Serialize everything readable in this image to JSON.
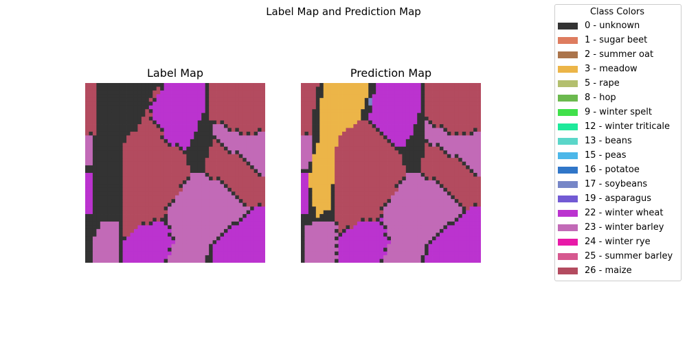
{
  "chart_data": {
    "type": "heatmap",
    "title": "Label Map and Prediction Map",
    "grid": false,
    "legend_placement": "right",
    "legend": {
      "title": "Class Colors",
      "entries": [
        {
          "id": 0,
          "label": "0 - unknown",
          "color": "#333333"
        },
        {
          "id": 1,
          "label": "1 - sugar beet",
          "color": "#de7c5f"
        },
        {
          "id": 2,
          "label": "2 - summer oat",
          "color": "#ab744b"
        },
        {
          "id": 3,
          "label": "3 - meadow",
          "color": "#ecb548"
        },
        {
          "id": 5,
          "label": "5 - rape",
          "color": "#b3bf6e"
        },
        {
          "id": 8,
          "label": "8 - hop",
          "color": "#6bb94e"
        },
        {
          "id": 9,
          "label": "9 - winter spelt",
          "color": "#40e04a"
        },
        {
          "id": 12,
          "label": "12 - winter triticale",
          "color": "#1ee99a"
        },
        {
          "id": 13,
          "label": "13 - beans",
          "color": "#5bd6c9"
        },
        {
          "id": 15,
          "label": "15 - peas",
          "color": "#4cb7e9"
        },
        {
          "id": 16,
          "label": "16 - potatoe",
          "color": "#3076c8"
        },
        {
          "id": 17,
          "label": "17 - soybeans",
          "color": "#7686c7"
        },
        {
          "id": 19,
          "label": "19 - asparagus",
          "color": "#725ad4"
        },
        {
          "id": 22,
          "label": "22 - winter wheat",
          "color": "#bb33cf"
        },
        {
          "id": 23,
          "label": "23 - winter barley",
          "color": "#c26ab7"
        },
        {
          "id": 24,
          "label": "24 - winter rye",
          "color": "#e81aa8"
        },
        {
          "id": 25,
          "label": "25 - summer barley",
          "color": "#d6588f"
        },
        {
          "id": 26,
          "label": "26 - maize",
          "color": "#b34b5f"
        }
      ]
    },
    "maps": [
      {
        "title": "Label Map",
        "size": 48,
        "regions": [
          {
            "class": 26,
            "points": [
              [
                0,
                0
              ],
              [
                0.5,
                0
              ],
              [
                0.5,
                0.22
              ],
              [
                0.4,
                0.4
              ],
              [
                0.2,
                0.35
              ],
              [
                0,
                0.32
              ]
            ]
          },
          {
            "class": 0,
            "points": [
              [
                0.07,
                0
              ],
              [
                0.4,
                0
              ],
              [
                0.35,
                0.13
              ],
              [
                0.24,
                0.34
              ],
              [
                0.2,
                0.6
              ],
              [
                0.18,
                1
              ],
              [
                0,
                1
              ],
              [
                0,
                0.7
              ],
              [
                0.03,
                0.7
              ],
              [
                0.03,
                0.45
              ],
              [
                0.05,
                0.3
              ],
              [
                0.07,
                0.2
              ]
            ]
          },
          {
            "class": 23,
            "points": [
              [
                0,
                0.28
              ],
              [
                0.04,
                0.3
              ],
              [
                0.04,
                0.45
              ],
              [
                0,
                0.47
              ]
            ]
          },
          {
            "class": 22,
            "points": [
              [
                0,
                0.5
              ],
              [
                0.04,
                0.5
              ],
              [
                0.04,
                0.73
              ],
              [
                0,
                0.73
              ]
            ]
          },
          {
            "class": 0,
            "points": [
              [
                0.4,
                0
              ],
              [
                0.62,
                0
              ],
              [
                0.68,
                0.08
              ],
              [
                0.68,
                0.25
              ],
              [
                0.62,
                0.3
              ],
              [
                0.5,
                0.24
              ]
            ]
          },
          {
            "class": 22,
            "points": [
              [
                0.45,
                0
              ],
              [
                0.68,
                0
              ],
              [
                0.66,
                0.15
              ],
              [
                0.58,
                0.35
              ],
              [
                0.5,
                0.4
              ],
              [
                0.44,
                0.3
              ],
              [
                0.35,
                0.15
              ]
            ]
          },
          {
            "class": 0,
            "points": [
              [
                0.6,
                0.3
              ],
              [
                0.68,
                0.27
              ],
              [
                0.7,
                0.36
              ],
              [
                0.62,
                0.37
              ]
            ]
          },
          {
            "class": 26,
            "points": [
              [
                0.68,
                0
              ],
              [
                1,
                0
              ],
              [
                1,
                0.27
              ],
              [
                0.93,
                0.35
              ],
              [
                0.68,
                0.2
              ]
            ]
          },
          {
            "class": 23,
            "points": [
              [
                0.7,
                0.2
              ],
              [
                0.88,
                0.3
              ],
              [
                1,
                0.27
              ],
              [
                1,
                0.55
              ],
              [
                0.9,
                0.5
              ],
              [
                0.72,
                0.4
              ]
            ]
          },
          {
            "class": 26,
            "points": [
              [
                0.72,
                0.32
              ],
              [
                0.95,
                0.48
              ],
              [
                1,
                0.52
              ],
              [
                1,
                0.68
              ],
              [
                0.9,
                0.7
              ],
              [
                0.78,
                0.62
              ],
              [
                0.66,
                0.5
              ],
              [
                0.68,
                0.4
              ]
            ]
          },
          {
            "class": 26,
            "points": [
              [
                0.22,
                0.3
              ],
              [
                0.35,
                0.22
              ],
              [
                0.55,
                0.4
              ],
              [
                0.62,
                0.55
              ],
              [
                0.45,
                0.72
              ],
              [
                0.3,
                0.87
              ],
              [
                0.2,
                0.85
              ],
              [
                0.21,
                0.55
              ]
            ]
          },
          {
            "class": 23,
            "points": [
              [
                0.45,
                0.72
              ],
              [
                0.6,
                0.5
              ],
              [
                0.68,
                0.5
              ],
              [
                0.92,
                0.7
              ],
              [
                0.7,
                0.92
              ],
              [
                0.66,
                1
              ],
              [
                0.45,
                1
              ]
            ]
          },
          {
            "class": 22,
            "points": [
              [
                0.7,
                1
              ],
              [
                0.72,
                0.9
              ],
              [
                0.93,
                0.7
              ],
              [
                1,
                0.68
              ],
              [
                1,
                1
              ]
            ]
          },
          {
            "class": 22,
            "points": [
              [
                0.21,
                1
              ],
              [
                0.21,
                0.88
              ],
              [
                0.3,
                0.8
              ],
              [
                0.45,
                0.76
              ],
              [
                0.5,
                0.88
              ],
              [
                0.45,
                1
              ]
            ]
          },
          {
            "class": 23,
            "points": [
              [
                0.05,
                1
              ],
              [
                0.05,
                0.85
              ],
              [
                0.1,
                0.77
              ],
              [
                0.18,
                0.77
              ],
              [
                0.18,
                1
              ]
            ]
          }
        ]
      },
      {
        "title": "Prediction Map",
        "size": 48,
        "regions": [
          {
            "class": 26,
            "points": [
              [
                0,
                0
              ],
              [
                0.12,
                0
              ],
              [
                0.12,
                0.3
              ],
              [
                0,
                0.3
              ]
            ]
          },
          {
            "class": 0,
            "points": [
              [
                0.1,
                0
              ],
              [
                0.2,
                0
              ],
              [
                0.14,
                0.45
              ],
              [
                0,
                0.5
              ],
              [
                0,
                0.65
              ],
              [
                0.06,
                0.7
              ],
              [
                0.05,
                1
              ],
              [
                0,
                1
              ],
              [
                0,
                0.3
              ],
              [
                0.05,
                0.3
              ],
              [
                0.08,
                0.1
              ]
            ]
          },
          {
            "class": 3,
            "points": [
              [
                0.13,
                0
              ],
              [
                0.38,
                0
              ],
              [
                0.36,
                0.12
              ],
              [
                0.3,
                0.25
              ],
              [
                0.2,
                0.35
              ],
              [
                0.18,
                0.55
              ],
              [
                0.16,
                0.7
              ],
              [
                0.08,
                0.75
              ],
              [
                0.06,
                0.6
              ],
              [
                0.04,
                0.55
              ],
              [
                0.06,
                0.45
              ],
              [
                0.1,
                0.3
              ],
              [
                0.1,
                0.15
              ]
            ]
          },
          {
            "class": 23,
            "points": [
              [
                0,
                0.28
              ],
              [
                0.06,
                0.3
              ],
              [
                0.05,
                0.47
              ],
              [
                0,
                0.47
              ]
            ]
          },
          {
            "class": 22,
            "points": [
              [
                0,
                0.5
              ],
              [
                0.05,
                0.5
              ],
              [
                0.05,
                0.73
              ],
              [
                0,
                0.73
              ]
            ]
          },
          {
            "class": 0,
            "points": [
              [
                0.37,
                0
              ],
              [
                0.42,
                0
              ],
              [
                0.42,
                0.1
              ],
              [
                0.38,
                0.12
              ]
            ]
          },
          {
            "class": 17,
            "points": [
              [
                0.38,
                0.08
              ],
              [
                0.41,
                0.08
              ],
              [
                0.41,
                0.12
              ],
              [
                0.38,
                0.12
              ]
            ]
          },
          {
            "class": 22,
            "points": [
              [
                0.42,
                0
              ],
              [
                0.68,
                0
              ],
              [
                0.66,
                0.15
              ],
              [
                0.6,
                0.33
              ],
              [
                0.5,
                0.4
              ],
              [
                0.44,
                0.3
              ],
              [
                0.38,
                0.2
              ]
            ]
          },
          {
            "class": 0,
            "points": [
              [
                0.58,
                0.32
              ],
              [
                0.66,
                0.28
              ],
              [
                0.68,
                0.38
              ],
              [
                0.6,
                0.38
              ]
            ]
          },
          {
            "class": 26,
            "points": [
              [
                0.68,
                0
              ],
              [
                1,
                0
              ],
              [
                1,
                0.27
              ],
              [
                0.93,
                0.35
              ],
              [
                0.68,
                0.2
              ]
            ]
          },
          {
            "class": 23,
            "points": [
              [
                0.68,
                0.2
              ],
              [
                0.88,
                0.3
              ],
              [
                1,
                0.27
              ],
              [
                1,
                0.58
              ],
              [
                0.9,
                0.5
              ],
              [
                0.7,
                0.4
              ]
            ]
          },
          {
            "class": 26,
            "points": [
              [
                0.7,
                0.32
              ],
              [
                0.95,
                0.48
              ],
              [
                1,
                0.52
              ],
              [
                1,
                0.7
              ],
              [
                0.9,
                0.7
              ],
              [
                0.78,
                0.62
              ],
              [
                0.66,
                0.5
              ],
              [
                0.68,
                0.4
              ]
            ]
          },
          {
            "class": 26,
            "points": [
              [
                0.2,
                0.3
              ],
              [
                0.35,
                0.2
              ],
              [
                0.55,
                0.4
              ],
              [
                0.62,
                0.55
              ],
              [
                0.45,
                0.72
              ],
              [
                0.3,
                0.87
              ],
              [
                0.2,
                0.85
              ],
              [
                0.19,
                0.55
              ]
            ]
          },
          {
            "class": 23,
            "points": [
              [
                0.45,
                0.72
              ],
              [
                0.6,
                0.5
              ],
              [
                0.68,
                0.5
              ],
              [
                0.92,
                0.7
              ],
              [
                0.7,
                0.92
              ],
              [
                0.66,
                1
              ],
              [
                0.45,
                1
              ]
            ]
          },
          {
            "class": 22,
            "points": [
              [
                0.68,
                1
              ],
              [
                0.72,
                0.9
              ],
              [
                0.93,
                0.7
              ],
              [
                1,
                0.68
              ],
              [
                1,
                1
              ]
            ]
          },
          {
            "class": 22,
            "points": [
              [
                0.21,
                1
              ],
              [
                0.21,
                0.85
              ],
              [
                0.32,
                0.78
              ],
              [
                0.45,
                0.76
              ],
              [
                0.5,
                0.88
              ],
              [
                0.45,
                1
              ]
            ]
          },
          {
            "class": 23,
            "points": [
              [
                0.02,
                1
              ],
              [
                0.02,
                0.8
              ],
              [
                0.1,
                0.76
              ],
              [
                0.2,
                0.78
              ],
              [
                0.21,
                1
              ]
            ]
          }
        ]
      }
    ]
  }
}
